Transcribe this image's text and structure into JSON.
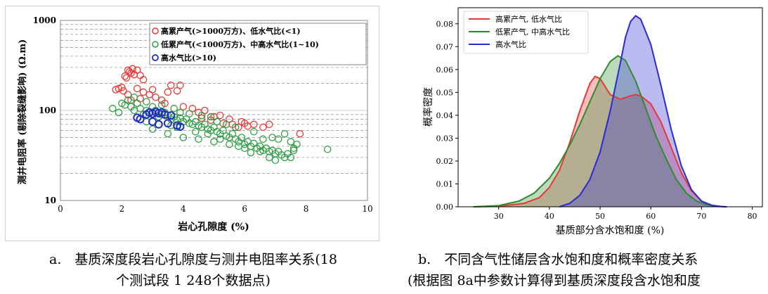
{
  "chart_data": [
    {
      "type": "scatter",
      "panel": "a",
      "xlabel": "岩心孔隙度 (%)",
      "ylabel": "测井电阻率 (剔除裂缝影响) (Ω.m)",
      "xlim": [
        0,
        10
      ],
      "ylim": [
        10,
        1000
      ],
      "yscale": "log",
      "xticks": [
        0,
        2,
        4,
        6,
        8,
        10
      ],
      "yticks": [
        10,
        100,
        1000
      ],
      "grid": "dashed horizontal",
      "legend_position": "top-right",
      "series": [
        {
          "name": "高累产气(>1000万方)、低水气比(<1)",
          "color": "#e53935",
          "points": [
            [
              1.8,
              170
            ],
            [
              1.9,
              175
            ],
            [
              2.0,
              180
            ],
            [
              2.05,
              165
            ],
            [
              2.1,
              240
            ],
            [
              2.15,
              230
            ],
            [
              2.2,
              280
            ],
            [
              2.25,
              270
            ],
            [
              2.3,
              260
            ],
            [
              2.35,
              290
            ],
            [
              2.4,
              250
            ],
            [
              2.5,
              280
            ],
            [
              2.6,
              245
            ],
            [
              2.7,
              220
            ],
            [
              2.5,
              175
            ],
            [
              2.7,
              160
            ],
            [
              2.9,
              150
            ],
            [
              3.0,
              170
            ],
            [
              3.1,
              140
            ],
            [
              3.3,
              130
            ],
            [
              3.5,
              160
            ],
            [
              3.6,
              190
            ],
            [
              3.8,
              165
            ],
            [
              3.9,
              190
            ],
            [
              3.4,
              120
            ],
            [
              2.2,
              150
            ],
            [
              2.3,
              130
            ],
            [
              2.6,
              135
            ],
            [
              4.0,
              110
            ],
            [
              4.3,
              105
            ],
            [
              4.5,
              95
            ],
            [
              4.7,
              100
            ],
            [
              5.0,
              85
            ],
            [
              5.2,
              88
            ],
            [
              5.5,
              80
            ],
            [
              5.6,
              70
            ],
            [
              5.8,
              65
            ],
            [
              5.9,
              75
            ],
            [
              6.0,
              72
            ],
            [
              6.1,
              67
            ],
            [
              6.3,
              70
            ],
            [
              6.6,
              65
            ],
            [
              6.8,
              70
            ],
            [
              5.3,
              72
            ],
            [
              4.9,
              78
            ],
            [
              4.6,
              82
            ],
            [
              7.8,
              55
            ]
          ]
        },
        {
          "name": "低累产气(<1000万方)、中高水气比(1~10)",
          "color": "#2e9e44",
          "points": [
            [
              1.7,
              105
            ],
            [
              1.9,
              95
            ],
            [
              2.0,
              120
            ],
            [
              2.2,
              130
            ],
            [
              2.3,
              110
            ],
            [
              2.4,
              100
            ],
            [
              2.5,
              120
            ],
            [
              2.6,
              105
            ],
            [
              2.7,
              90
            ],
            [
              2.8,
              100
            ],
            [
              2.9,
              95
            ],
            [
              3.0,
              110
            ],
            [
              3.1,
              100
            ],
            [
              3.2,
              85
            ],
            [
              3.3,
              90
            ],
            [
              3.4,
              95
            ],
            [
              3.5,
              88
            ],
            [
              3.6,
              80
            ],
            [
              3.7,
              85
            ],
            [
              3.8,
              78
            ],
            [
              3.9,
              82
            ],
            [
              4.0,
              75
            ],
            [
              4.1,
              80
            ],
            [
              4.2,
              72
            ],
            [
              4.3,
              70
            ],
            [
              4.4,
              75
            ],
            [
              4.5,
              68
            ],
            [
              4.6,
              65
            ],
            [
              4.7,
              70
            ],
            [
              4.8,
              62
            ],
            [
              4.9,
              60
            ],
            [
              5.0,
              65
            ],
            [
              5.1,
              58
            ],
            [
              5.2,
              55
            ],
            [
              5.3,
              60
            ],
            [
              5.4,
              52
            ],
            [
              5.5,
              50
            ],
            [
              5.6,
              55
            ],
            [
              5.7,
              48
            ],
            [
              5.8,
              45
            ],
            [
              5.9,
              50
            ],
            [
              6.0,
              42
            ],
            [
              6.1,
              45
            ],
            [
              6.2,
              40
            ],
            [
              6.3,
              43
            ],
            [
              6.4,
              38
            ],
            [
              6.5,
              40
            ],
            [
              6.6,
              36
            ],
            [
              6.7,
              38
            ],
            [
              6.8,
              35
            ],
            [
              6.9,
              36
            ],
            [
              7.0,
              33
            ],
            [
              7.1,
              35
            ],
            [
              7.2,
              32
            ],
            [
              7.3,
              30
            ],
            [
              7.4,
              33
            ],
            [
              7.5,
              30
            ],
            [
              7.6,
              38
            ],
            [
              7.7,
              42
            ],
            [
              7.5,
              45
            ],
            [
              7.3,
              55
            ],
            [
              7.1,
              48
            ],
            [
              3.0,
              62
            ],
            [
              3.5,
              55
            ],
            [
              4.0,
              50
            ],
            [
              4.5,
              48
            ],
            [
              5.0,
              45
            ],
            [
              5.5,
              42
            ],
            [
              6.0,
              38
            ],
            [
              6.5,
              35
            ],
            [
              3.2,
              70
            ],
            [
              3.8,
              65
            ],
            [
              4.4,
              58
            ],
            [
              5.2,
              48
            ],
            [
              6.8,
              30
            ],
            [
              7.0,
              28
            ],
            [
              2.8,
              75
            ],
            [
              3.6,
              68
            ],
            [
              4.8,
              55
            ],
            [
              5.8,
              40
            ],
            [
              6.2,
              34
            ],
            [
              7.6,
              36
            ],
            [
              8.7,
              37
            ],
            [
              2.1,
              115
            ],
            [
              2.4,
              140
            ],
            [
              2.8,
              125
            ],
            [
              3.3,
              115
            ],
            [
              3.7,
              105
            ],
            [
              4.2,
              92
            ],
            [
              4.6,
              88
            ],
            [
              5.1,
              75
            ],
            [
              5.7,
              65
            ],
            [
              6.3,
              58
            ],
            [
              6.9,
              50
            ],
            [
              3.9,
              95
            ],
            [
              4.9,
              85
            ],
            [
              5.4,
              70
            ],
            [
              6.6,
              48
            ]
          ]
        },
        {
          "name": "高水气比(>10)",
          "color": "#1f2fbf",
          "points": [
            [
              2.5,
              83
            ],
            [
              2.6,
              80
            ],
            [
              2.8,
              90
            ],
            [
              2.9,
              95
            ],
            [
              3.0,
              92
            ],
            [
              3.1,
              96
            ],
            [
              3.2,
              93
            ],
            [
              3.3,
              95
            ],
            [
              3.4,
              90
            ],
            [
              3.0,
              75
            ],
            [
              3.2,
              70
            ],
            [
              3.5,
              72
            ],
            [
              3.8,
              68
            ],
            [
              3.9,
              66
            ],
            [
              3.6,
              88
            ]
          ]
        }
      ]
    },
    {
      "type": "area",
      "panel": "b",
      "xlabel": "基质部分含水饱和度 (%)",
      "ylabel": "概率密度",
      "xlim": [
        22,
        82
      ],
      "ylim": [
        0,
        0.087
      ],
      "xticks": [
        30,
        40,
        50,
        60,
        70,
        80
      ],
      "yticks": [
        "0.00",
        "0.01",
        "0.02",
        "0.03",
        "0.04",
        "0.05",
        "0.06",
        "0.07",
        "0.08"
      ],
      "legend_position": "top-left",
      "series": [
        {
          "name": "高累产气, 低水气比",
          "color": "#e53935",
          "x": [
            25,
            30,
            35,
            38,
            40,
            42,
            44,
            46,
            48,
            49,
            50,
            52,
            54,
            56,
            57,
            58,
            60,
            62,
            64,
            66,
            68,
            70,
            72,
            74
          ],
          "y": [
            0.0,
            0.0002,
            0.0015,
            0.004,
            0.0085,
            0.016,
            0.028,
            0.042,
            0.054,
            0.057,
            0.056,
            0.049,
            0.047,
            0.0485,
            0.049,
            0.0485,
            0.045,
            0.037,
            0.026,
            0.015,
            0.007,
            0.0025,
            0.0007,
            0.0001
          ]
        },
        {
          "name": "低累产气, 中高水气比",
          "color": "#2e8b2e",
          "x": [
            25,
            30,
            34,
            37,
            40,
            42,
            44,
            46,
            48,
            50,
            52,
            53.5,
            55,
            57,
            59,
            61,
            63,
            65,
            67,
            69,
            71,
            73,
            75
          ],
          "y": [
            0.0,
            0.0005,
            0.0025,
            0.006,
            0.0125,
            0.019,
            0.027,
            0.036,
            0.046,
            0.056,
            0.0635,
            0.066,
            0.064,
            0.055,
            0.043,
            0.031,
            0.021,
            0.012,
            0.006,
            0.0025,
            0.0009,
            0.0002,
            0.0
          ]
        },
        {
          "name": "高水气比",
          "color": "#2b2bd6",
          "x": [
            42,
            44,
            46,
            48,
            50,
            52,
            54,
            55,
            56,
            57,
            58,
            60,
            62,
            64,
            66,
            68,
            70,
            72,
            74,
            75
          ],
          "y": [
            0.0,
            0.0015,
            0.005,
            0.012,
            0.024,
            0.042,
            0.063,
            0.074,
            0.081,
            0.0835,
            0.082,
            0.071,
            0.053,
            0.034,
            0.018,
            0.0075,
            0.0025,
            0.0006,
            0.0001,
            0.0
          ]
        }
      ]
    }
  ],
  "captions": {
    "a_line1": "a.　基质深度段岩心孔隙度与测井电阻率关系(18",
    "a_line2": "个测试段 1 248个数据点)",
    "b_line1": "b.　不同含气性储层含水饱和度和概率密度关系",
    "b_line2": "(根据图 8a中参数计算得到基质深度段含水饱和度"
  }
}
